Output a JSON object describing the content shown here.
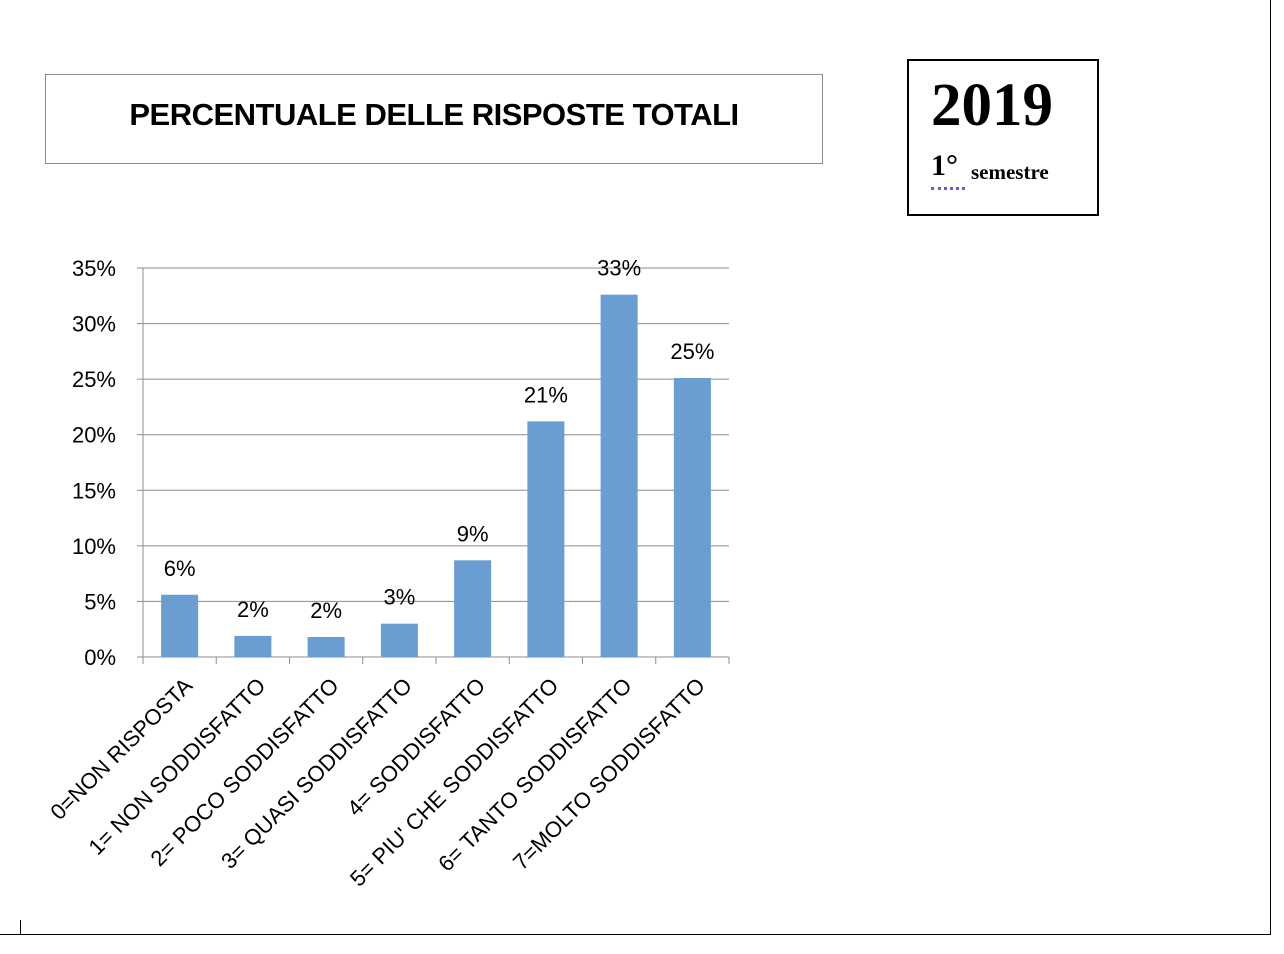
{
  "chart_data": {
    "type": "bar",
    "title": "PERCENTUALE DELLE RISPOSTE TOTALI",
    "categories": [
      "0=NON RISPOSTA",
      "1= NON SODDISFATTO",
      "2= POCO SODDISFATTO",
      "3= QUASI SODDISFATTO",
      "4= SODDISFATTO",
      "5= PIU' CHE SODDISFATTO",
      "6= TANTO SODDISFATTO",
      "7=MOLTO SODDISFATTO"
    ],
    "values": [
      5.6,
      1.9,
      1.8,
      3.0,
      8.7,
      21.2,
      32.6,
      25.1
    ],
    "data_labels": [
      "6%",
      "2%",
      "2%",
      "3%",
      "9%",
      "21%",
      "33%",
      "25%"
    ],
    "ylim": [
      0,
      35
    ],
    "yticks": [
      "0%",
      "5%",
      "10%",
      "15%",
      "20%",
      "25%",
      "30%",
      "35%"
    ],
    "ytick_values": [
      0,
      5,
      10,
      15,
      20,
      25,
      30,
      35
    ],
    "grid": true,
    "bar_color": "#6a9dd2",
    "grid_color": "#8c8c8c"
  },
  "badge": {
    "year": "2019",
    "semester_ordinal": "1°",
    "semester_word": "semestre"
  }
}
